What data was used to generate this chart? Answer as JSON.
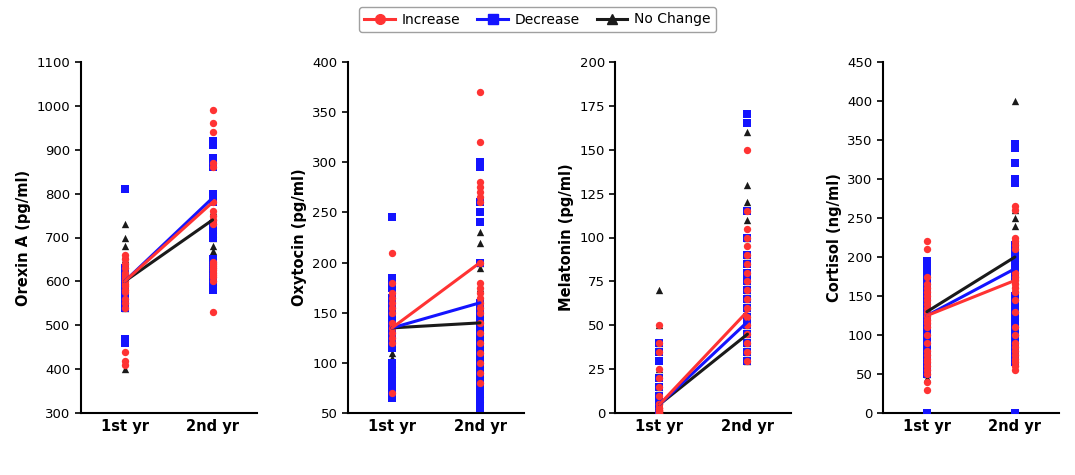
{
  "x_labels": [
    "1st yr",
    "2nd yr"
  ],
  "subplots": [
    {
      "ylabel": "Orexin A (pg/ml)",
      "ylim": [
        300,
        1100
      ],
      "yticks": [
        300,
        400,
        500,
        600,
        700,
        800,
        900,
        1000,
        1100
      ],
      "means": {
        "increase": [
          600,
          780
        ],
        "decrease": [
          600,
          790
        ],
        "no_change": [
          600,
          740
        ]
      },
      "scatter": {
        "increase": {
          "x1": [
            410,
            420,
            440,
            540,
            550,
            560,
            575,
            580,
            590,
            595,
            600,
            605,
            610,
            615,
            620,
            630,
            640,
            650,
            660
          ],
          "x2": [
            530,
            600,
            610,
            615,
            620,
            625,
            630,
            635,
            640,
            645,
            730,
            740,
            750,
            760,
            780,
            860,
            870,
            940,
            960,
            990
          ]
        },
        "decrease": {
          "x1": [
            460,
            465,
            470,
            540,
            545,
            550,
            555,
            560,
            565,
            570,
            575,
            580,
            585,
            590,
            595,
            600,
            605,
            610,
            615,
            620,
            625,
            630,
            810
          ],
          "x2": [
            580,
            585,
            590,
            595,
            600,
            605,
            610,
            615,
            620,
            625,
            630,
            635,
            640,
            650,
            700,
            710,
            720,
            730,
            780,
            800,
            860,
            870,
            880,
            910,
            920
          ]
        },
        "no_change": {
          "x1": [
            400,
            540,
            545,
            550,
            555,
            560,
            570,
            580,
            590,
            600,
            610,
            620,
            630,
            640,
            650,
            660,
            680,
            700,
            730
          ],
          "x2": [
            600,
            605,
            610,
            620,
            630,
            640,
            650,
            660,
            670,
            680,
            700,
            710,
            720,
            730,
            740,
            750,
            760
          ]
        }
      }
    },
    {
      "ylabel": "Oxytocin (pg/ml)",
      "ylim": [
        50,
        400
      ],
      "yticks": [
        50,
        100,
        150,
        200,
        250,
        300,
        350,
        400
      ],
      "means": {
        "increase": [
          135,
          200
        ],
        "decrease": [
          135,
          160
        ],
        "no_change": [
          135,
          140
        ]
      },
      "scatter": {
        "increase": {
          "x1": [
            70,
            120,
            125,
            130,
            135,
            140,
            150,
            155,
            160,
            165,
            170,
            180,
            210
          ],
          "x2": [
            80,
            90,
            100,
            110,
            120,
            130,
            140,
            150,
            155,
            160,
            165,
            170,
            175,
            180,
            200,
            260,
            265,
            270,
            275,
            280,
            320,
            370
          ]
        },
        "decrease": {
          "x1": [
            65,
            70,
            75,
            80,
            85,
            90,
            95,
            100,
            115,
            120,
            125,
            130,
            135,
            140,
            145,
            150,
            155,
            160,
            165,
            175,
            180,
            185,
            245
          ],
          "x2": [
            55,
            60,
            65,
            70,
            75,
            80,
            85,
            90,
            95,
            100,
            105,
            110,
            115,
            120,
            125,
            130,
            135,
            140,
            145,
            150,
            155,
            160,
            200,
            240,
            250,
            260,
            295,
            300
          ]
        },
        "no_change": {
          "x1": [
            90,
            95,
            100,
            105,
            110,
            120,
            125,
            130,
            135,
            140,
            145,
            150,
            155,
            160,
            165,
            175,
            180
          ],
          "x2": [
            55,
            65,
            70,
            90,
            100,
            120,
            130,
            140,
            145,
            150,
            155,
            160,
            165,
            175,
            195,
            200,
            220,
            230
          ]
        }
      }
    },
    {
      "ylabel": "Melatonin (pg/ml)",
      "ylim": [
        0,
        200
      ],
      "yticks": [
        0,
        25,
        50,
        75,
        100,
        125,
        150,
        175,
        200
      ],
      "means": {
        "increase": [
          5,
          58
        ],
        "decrease": [
          5,
          52
        ],
        "no_change": [
          5,
          45
        ]
      },
      "scatter": {
        "increase": {
          "x1": [
            0,
            0,
            0,
            1,
            1,
            2,
            2,
            3,
            3,
            5,
            5,
            10,
            15,
            20,
            25,
            35,
            40,
            50
          ],
          "x2": [
            30,
            35,
            40,
            45,
            50,
            55,
            60,
            65,
            70,
            75,
            80,
            85,
            90,
            95,
            100,
            105,
            115,
            150
          ]
        },
        "decrease": {
          "x1": [
            0,
            0,
            0,
            1,
            1,
            2,
            2,
            3,
            3,
            5,
            5,
            8,
            10,
            15,
            20,
            30,
            35,
            40
          ],
          "x2": [
            30,
            35,
            40,
            45,
            50,
            55,
            60,
            65,
            70,
            75,
            80,
            85,
            90,
            100,
            115,
            165,
            170
          ]
        },
        "no_change": {
          "x1": [
            0,
            0,
            0,
            1,
            1,
            2,
            3,
            5,
            10,
            15,
            25,
            40,
            50,
            70
          ],
          "x2": [
            30,
            35,
            40,
            45,
            50,
            55,
            60,
            65,
            70,
            75,
            80,
            90,
            100,
            110,
            120,
            130,
            160
          ]
        }
      }
    },
    {
      "ylabel": "Cortisol (ng/ml)",
      "ylim": [
        0,
        450
      ],
      "yticks": [
        0,
        50,
        100,
        150,
        200,
        250,
        300,
        350,
        400,
        450
      ],
      "means": {
        "increase": [
          125,
          170
        ],
        "decrease": [
          125,
          185
        ],
        "no_change": [
          130,
          200
        ]
      },
      "scatter": {
        "increase": {
          "x1": [
            30,
            40,
            50,
            55,
            60,
            65,
            70,
            75,
            80,
            90,
            100,
            110,
            115,
            120,
            125,
            130,
            135,
            140,
            145,
            150,
            155,
            160,
            165,
            175,
            210,
            220
          ],
          "x2": [
            55,
            60,
            65,
            70,
            75,
            80,
            85,
            90,
            100,
            110,
            130,
            145,
            155,
            160,
            165,
            170,
            175,
            180,
            210,
            215,
            220,
            225,
            260,
            265
          ]
        },
        "decrease": {
          "x1": [
            0,
            50,
            55,
            60,
            65,
            70,
            75,
            80,
            85,
            90,
            95,
            100,
            105,
            110,
            115,
            120,
            125,
            130,
            135,
            140,
            145,
            150,
            155,
            160,
            165,
            175,
            185,
            195
          ],
          "x2": [
            0,
            65,
            70,
            75,
            80,
            85,
            90,
            95,
            100,
            105,
            110,
            115,
            120,
            125,
            130,
            140,
            150,
            175,
            185,
            190,
            195,
            200,
            205,
            210,
            215,
            295,
            300,
            320,
            340,
            345
          ]
        },
        "no_change": {
          "x1": [
            45,
            50,
            55,
            60,
            65,
            70,
            80,
            90,
            100,
            110,
            115,
            120,
            125,
            130,
            135,
            140,
            145,
            150
          ],
          "x2": [
            65,
            100,
            105,
            110,
            115,
            120,
            125,
            130,
            150,
            160,
            165,
            170,
            175,
            180,
            200,
            210,
            240,
            250,
            260,
            400
          ]
        }
      }
    }
  ],
  "increase_color": "#FF3333",
  "decrease_color": "#1414FF",
  "no_change_color": "#1A1A1A",
  "line_width": 2.2,
  "scatter_size": 28,
  "scatter_alpha": 1.0,
  "fig_width": 10.75,
  "fig_height": 4.75,
  "dpi": 100
}
